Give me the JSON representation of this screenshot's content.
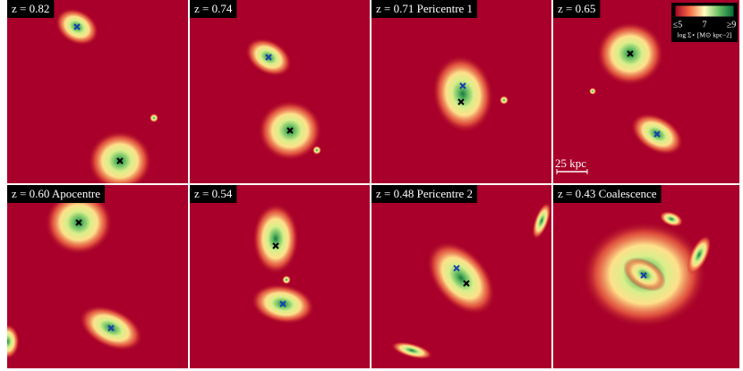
{
  "panels": [
    {
      "label": "z = 0.82"
    },
    {
      "label": "z = 0.74"
    },
    {
      "label": "z = 0.71 Pericentre 1"
    },
    {
      "label": "z = 0.65"
    },
    {
      "label": "z = 0.60 Apocentre"
    },
    {
      "label": "z = 0.54"
    },
    {
      "label": "z = 0.48 Pericentre 2"
    },
    {
      "label": "z = 0.43 Coalescence"
    }
  ],
  "colorbar": {
    "tick_labels": [
      "≤5",
      "7",
      "≥9"
    ],
    "title": "log Σ⋆ [M⊙ kpc−2]"
  },
  "scale_bar": {
    "label": "25 kpc"
  }
}
